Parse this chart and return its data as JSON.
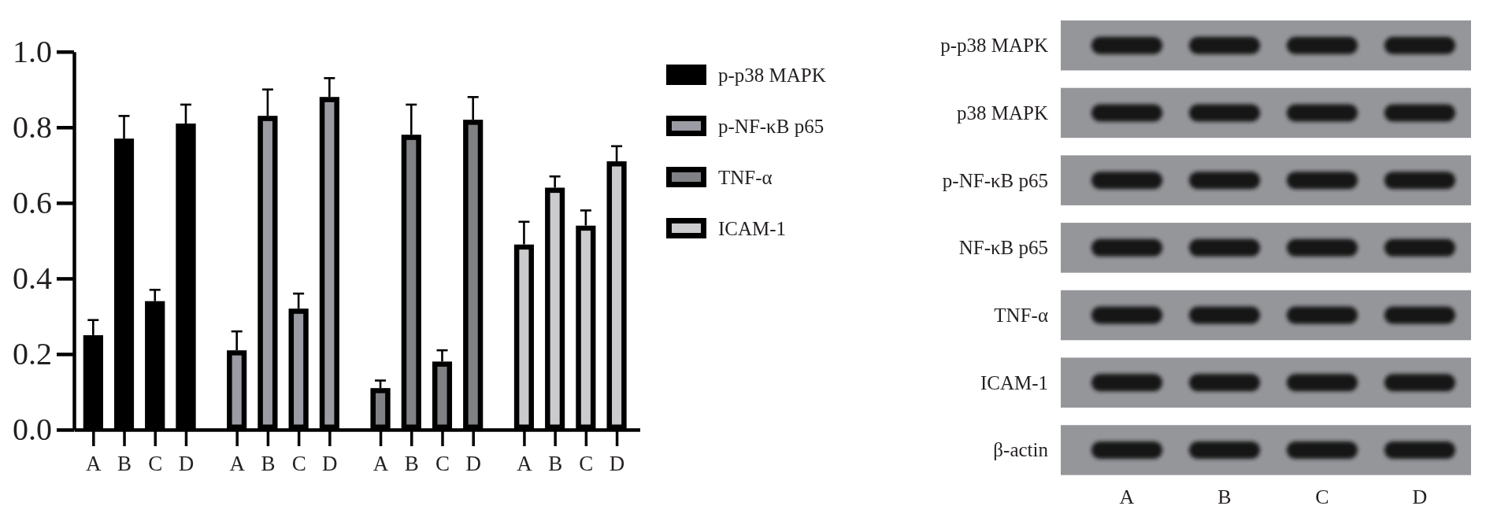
{
  "chart_data": [
    {
      "type": "bar",
      "categories": [
        "A",
        "B",
        "C",
        "D",
        "A",
        "B",
        "C",
        "D",
        "A",
        "B",
        "C",
        "D",
        "A",
        "B",
        "C",
        "D"
      ],
      "series": [
        {
          "name": "p-p38 MAPK",
          "color": "#000000",
          "values": [
            0.25,
            0.77,
            0.34,
            0.81,
            null,
            null,
            null,
            null,
            null,
            null,
            null,
            null,
            null,
            null,
            null,
            null
          ],
          "errors": [
            0.04,
            0.06,
            0.03,
            0.05,
            null,
            null,
            null,
            null,
            null,
            null,
            null,
            null,
            null,
            null,
            null,
            null
          ]
        },
        {
          "name": "p-NF-κB p65",
          "color": "#9a9ba3",
          "values": [
            null,
            null,
            null,
            null,
            0.21,
            0.83,
            0.32,
            0.88,
            null,
            null,
            null,
            null,
            null,
            null,
            null,
            null
          ],
          "errors": [
            null,
            null,
            null,
            null,
            0.05,
            0.07,
            0.04,
            0.05,
            null,
            null,
            null,
            null,
            null,
            null,
            null,
            null
          ]
        },
        {
          "name": "TNF-α",
          "color": "#808185",
          "values": [
            null,
            null,
            null,
            null,
            null,
            null,
            null,
            null,
            0.11,
            0.78,
            0.18,
            0.82,
            null,
            null,
            null,
            null
          ],
          "errors": [
            null,
            null,
            null,
            null,
            null,
            null,
            null,
            null,
            0.02,
            0.08,
            0.03,
            0.06,
            null,
            null,
            null,
            null
          ]
        },
        {
          "name": "ICAM-1",
          "color": "#cbcbcd",
          "values": [
            null,
            null,
            null,
            null,
            null,
            null,
            null,
            null,
            null,
            null,
            null,
            null,
            0.49,
            0.64,
            0.54,
            0.71
          ],
          "errors": [
            null,
            null,
            null,
            null,
            null,
            null,
            null,
            null,
            null,
            null,
            null,
            null,
            0.06,
            0.03,
            0.04,
            0.04
          ]
        }
      ],
      "ylim": [
        0,
        1
      ],
      "yticks": [
        {
          "value": 0,
          "label": "0.0"
        },
        0.2,
        0.4,
        0.6,
        0.8,
        {
          "value": 1,
          "label": "1.0"
        }
      ],
      "legend": "right"
    },
    {
      "type": "other",
      "categories": [
        "A",
        "B",
        "C",
        "D"
      ],
      "y_categories": [
        "p-p38 MAPK",
        "p38 MAPK",
        "p-NF-κB p65",
        "NF-κB p65",
        "TNF-α",
        "ICAM-1",
        "β-actin"
      ]
    }
  ]
}
